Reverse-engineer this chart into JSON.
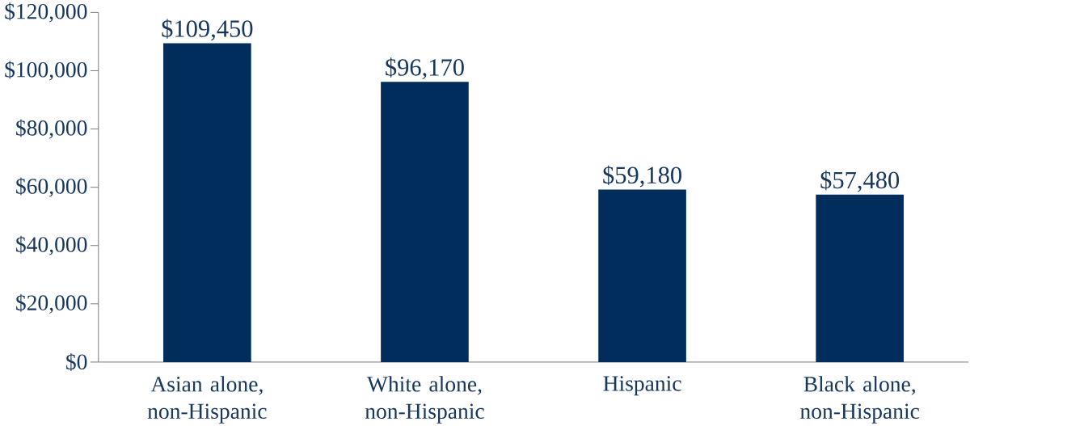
{
  "chart_data": {
    "type": "bar",
    "categories": [
      "Asian alone, non-Hispanic",
      "White alone, non-Hispanic",
      "Hispanic",
      "Black alone, non-Hispanic"
    ],
    "values": [
      109450,
      96170,
      59180,
      57480
    ],
    "value_labels": [
      "$109,450",
      "$96,170",
      "$59,180",
      "$57,480"
    ],
    "color": "#002d5b",
    "ylim": [
      0,
      120000
    ],
    "yticks": [
      {
        "value": 0,
        "label": "$0"
      },
      {
        "value": 20000,
        "label": "$20,000"
      },
      {
        "value": 40000,
        "label": "$40,000"
      },
      {
        "value": 60000,
        "label": "$60,000"
      },
      {
        "value": 80000,
        "label": "$80,000"
      },
      {
        "value": 100000,
        "label": "$100,000"
      },
      {
        "value": 120000,
        "label": "$120,000"
      }
    ],
    "grid": false
  }
}
